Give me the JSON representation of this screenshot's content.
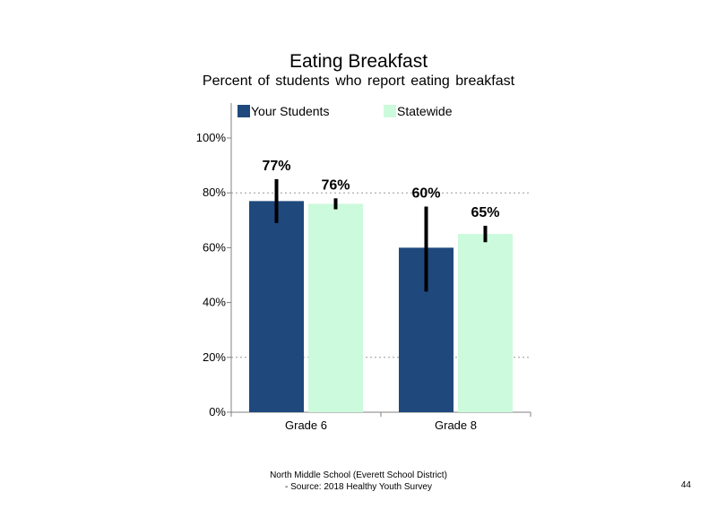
{
  "chart_data": {
    "type": "bar",
    "title": "Eating Breakfast",
    "subtitle": "Percent of students who report eating breakfast",
    "categories": [
      "Grade 6",
      "Grade 8"
    ],
    "series": [
      {
        "name": "Your Students",
        "color": "#1f497d",
        "values": [
          77,
          60
        ],
        "labels": [
          "77%",
          "60%"
        ],
        "error_low": [
          69,
          44
        ],
        "error_high": [
          85,
          75
        ]
      },
      {
        "name": "Statewide",
        "color": "#ccfadc",
        "values": [
          76,
          65
        ],
        "labels": [
          "76%",
          "65%"
        ],
        "error_low": [
          74,
          62
        ],
        "error_high": [
          78,
          68
        ]
      }
    ],
    "ylim": [
      0,
      100
    ],
    "yticks": [
      0,
      20,
      40,
      60,
      80,
      100
    ],
    "ytick_labels": [
      "0%",
      "20%",
      "40%",
      "60%",
      "80%",
      "100%"
    ],
    "gridlines": [
      20,
      80
    ],
    "legend_position": "top"
  },
  "footer": {
    "line1": "North Middle School (Everett School District)",
    "line2": "- Source: 2018 Healthy Youth Survey"
  },
  "page_number": "44"
}
